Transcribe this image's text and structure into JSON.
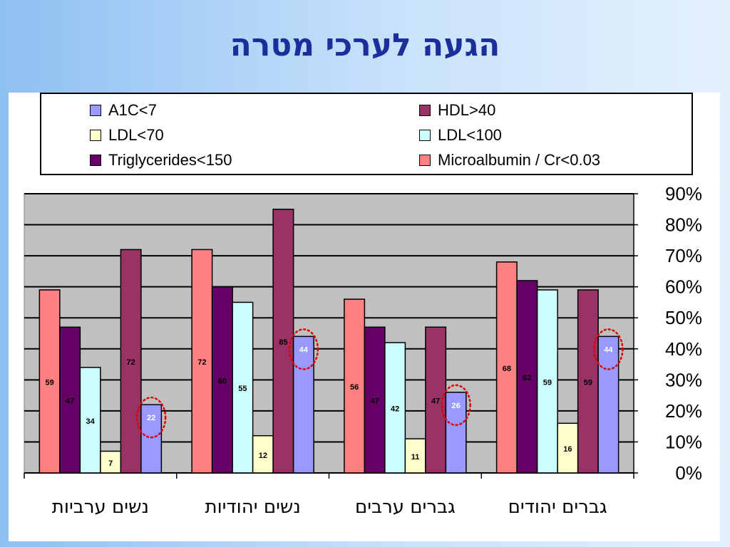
{
  "title": "הגעה לערכי מטרה",
  "chart_data": {
    "type": "bar",
    "categories": [
      "נשים ערביות",
      "נשים יהודיות",
      "גברים ערבים",
      "גברים יהודים"
    ],
    "series": [
      {
        "name": "Microalbumin / Cr<0.03",
        "color": "#ff8080",
        "values": [
          59,
          72,
          56,
          68
        ]
      },
      {
        "name": "Triglycerides<150",
        "color": "#660066",
        "values": [
          47,
          60,
          47,
          62
        ]
      },
      {
        "name": "LDL<100",
        "color": "#ccffff",
        "values": [
          34,
          55,
          42,
          59
        ]
      },
      {
        "name": "LDL<70",
        "color": "#ffffcc",
        "values": [
          7,
          12,
          11,
          16
        ]
      },
      {
        "name": "HDL>40",
        "color": "#993366",
        "values": [
          72,
          85,
          47,
          59
        ]
      },
      {
        "name": "A1C<7",
        "color": "#9999ff",
        "values": [
          22,
          44,
          26,
          44
        ]
      }
    ],
    "ylim": [
      0,
      90
    ],
    "yticks": [
      "0%",
      "10%",
      "20%",
      "30%",
      "40%",
      "50%",
      "60%",
      "70%",
      "80%",
      "90%"
    ],
    "grid": true,
    "legend_position": "top",
    "highlighted_series": "A1C<7"
  }
}
